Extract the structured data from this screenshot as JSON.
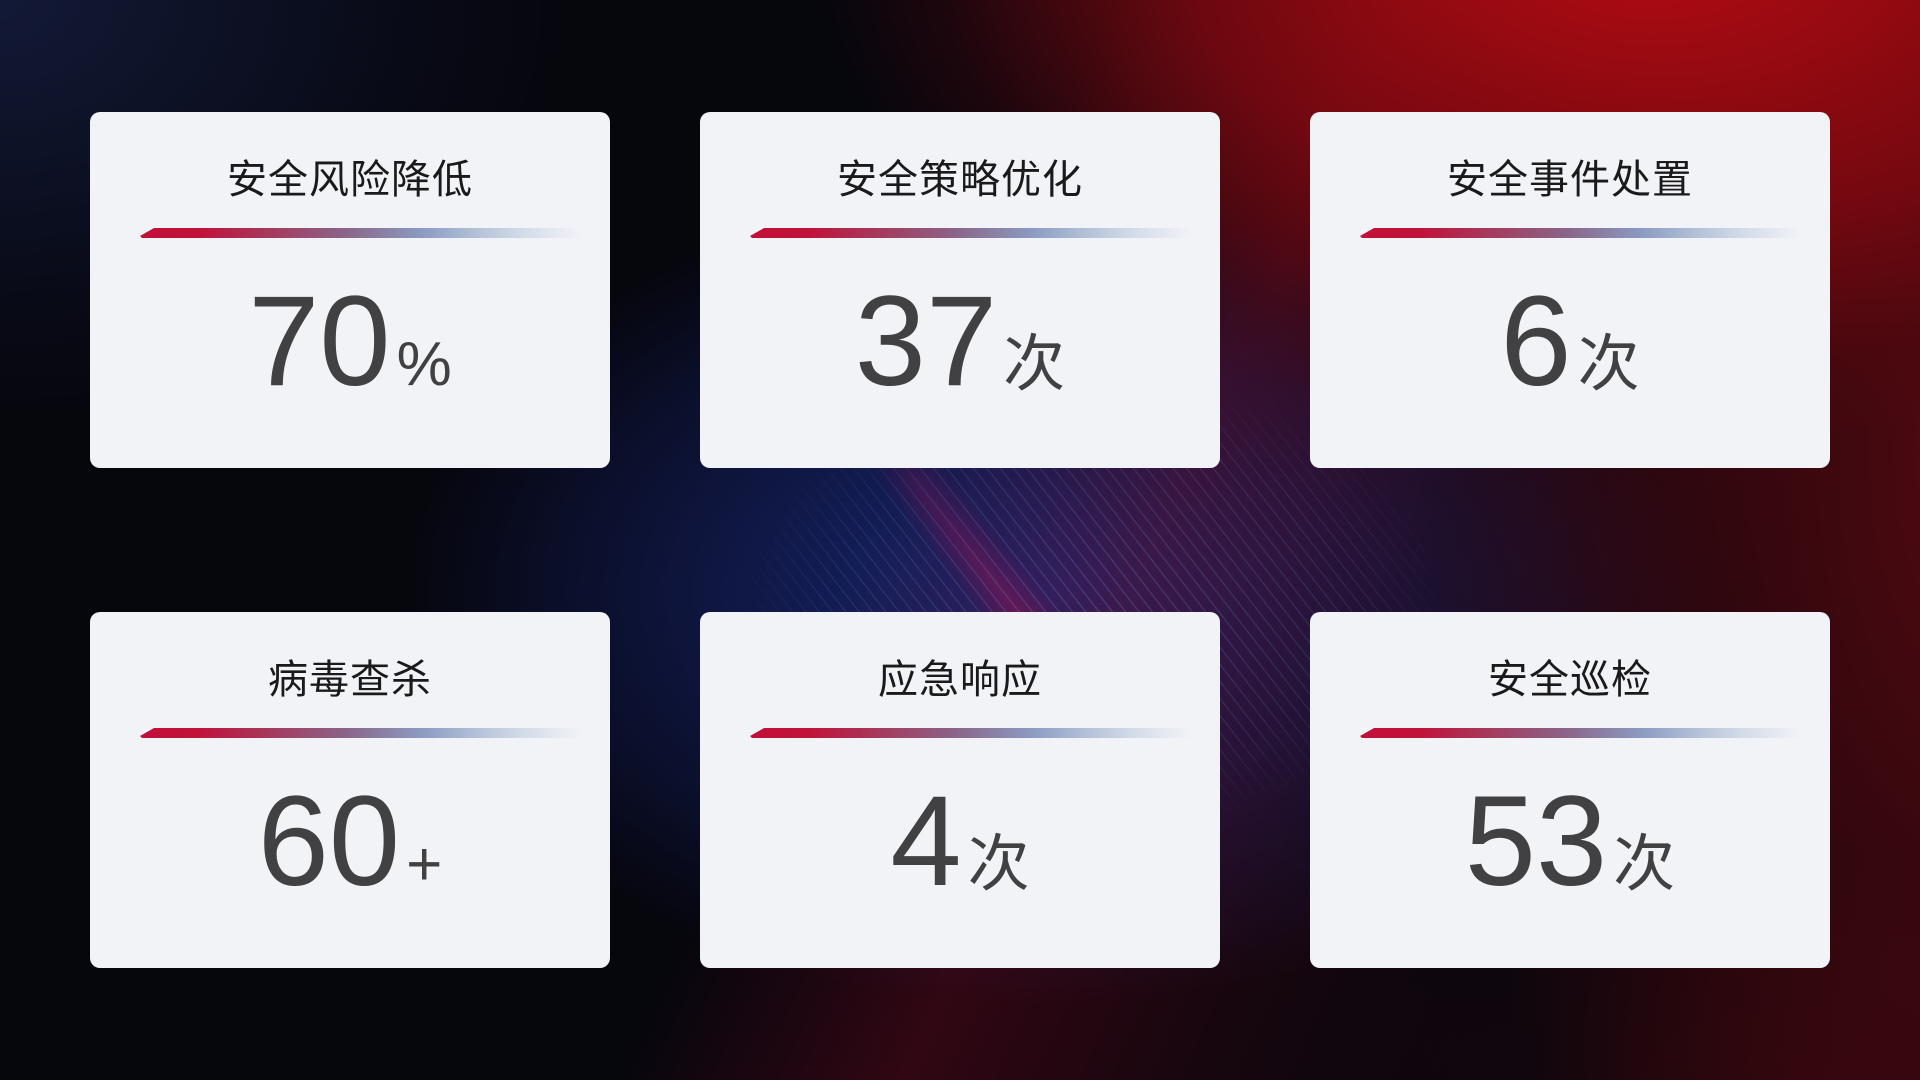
{
  "theme": {
    "background_base": "#06060d",
    "background_red_glow": "#bc0b12",
    "background_blue_glow": "#1b2c84",
    "card_background": "#f2f3f7",
    "title_color": "#1a1a1c",
    "value_color": "#414144",
    "divider_gradient_start": "#c31038",
    "divider_gradient_mid": "#8a6488",
    "divider_gradient_end": "#d3dbe8"
  },
  "cards": [
    {
      "title": "安全风险降低",
      "value": "70",
      "unit": "%"
    },
    {
      "title": "安全策略优化",
      "value": "37",
      "unit": "次"
    },
    {
      "title": "安全事件处置",
      "value": "6",
      "unit": "次"
    },
    {
      "title": "病毒查杀",
      "value": "60",
      "unit": "+"
    },
    {
      "title": "应急响应",
      "value": "4",
      "unit": "次"
    },
    {
      "title": "安全巡检",
      "value": "53",
      "unit": "次"
    }
  ]
}
